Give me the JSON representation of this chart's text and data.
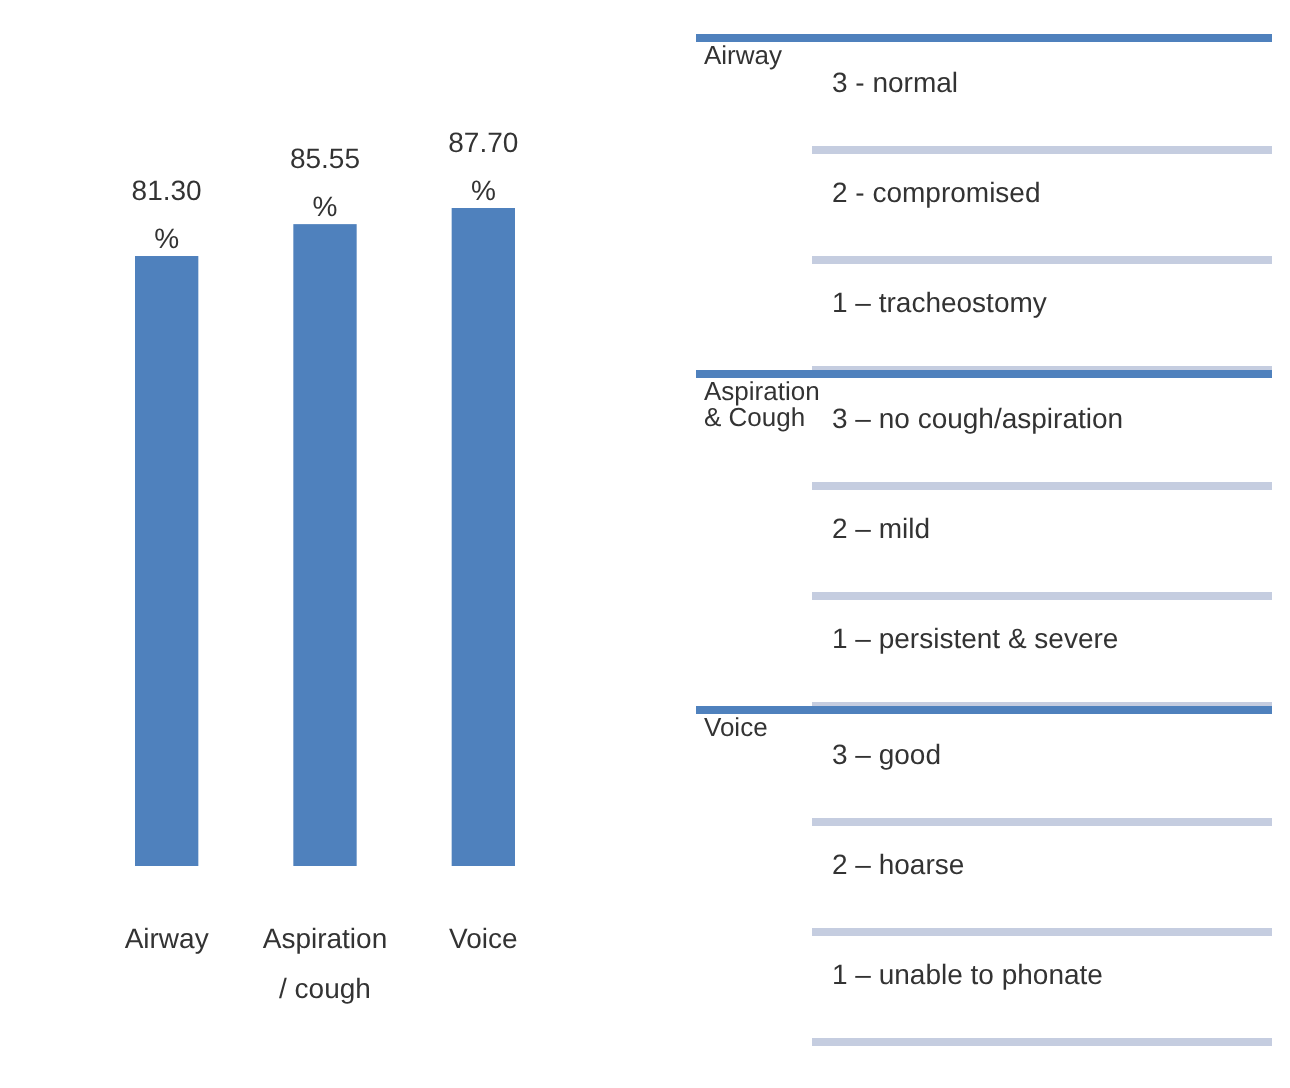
{
  "chart_data": [
    {
      "type": "bar",
      "categories": [
        "Airway",
        "Aspiration / cough",
        "Voice"
      ],
      "values": [
        81.3,
        85.55,
        87.7
      ],
      "value_labels": [
        "81.30 %",
        "85.55 %",
        "87.70 %"
      ],
      "color": "#4f81bd"
    },
    {
      "type": "other",
      "categories": [
        "Airway",
        "Aspiration & Cough",
        "Voice"
      ],
      "annotations": [
        "3 - normal",
        "2 - compromised",
        "1 – tracheostomy",
        "3 – no cough/aspiration",
        "2 – mild",
        "1 – persistent & severe",
        "3 – good",
        "2 – hoarse",
        "1 – unable to phonate"
      ]
    }
  ]
}
